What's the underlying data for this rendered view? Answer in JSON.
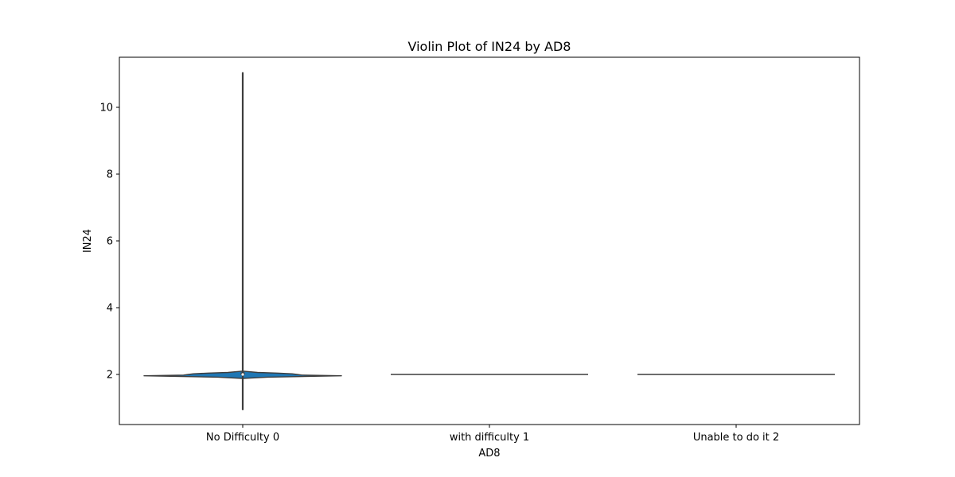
{
  "chart_data": {
    "type": "violin",
    "title": "Violin Plot of IN24 by AD8",
    "xlabel": "AD8",
    "ylabel": "IN24",
    "categories": [
      "No Difficulty 0",
      "with difficulty 1",
      "Unable to do it 2"
    ],
    "ylim": [
      0.5,
      11.5
    ],
    "yticks": [
      2,
      4,
      6,
      8,
      10
    ],
    "grid": false,
    "violin_color": "#1f77b4",
    "edge_color": "#3d3d3d",
    "violins": [
      {
        "category": "No Difficulty 0",
        "min": 0.94,
        "max": 11.04,
        "median": 2.0,
        "q1": 1.98,
        "q3": 2.06,
        "density": [
          [
            0.94,
            0.0
          ],
          [
            1.5,
            0.0
          ],
          [
            1.88,
            0.0
          ],
          [
            1.92,
            0.25
          ],
          [
            1.96,
            1.0
          ],
          [
            1.98,
            0.6
          ],
          [
            2.0,
            0.55
          ],
          [
            2.02,
            0.5
          ],
          [
            2.04,
            0.35
          ],
          [
            2.06,
            0.15
          ],
          [
            2.1,
            0.0
          ],
          [
            11.04,
            0.0
          ]
        ]
      },
      {
        "category": "with difficulty 1",
        "min": 2.0,
        "max": 2.0,
        "median": 2.0,
        "density": [
          [
            2.0,
            1.0
          ]
        ]
      },
      {
        "category": "Unable to do it 2",
        "min": 2.0,
        "max": 2.0,
        "median": 2.0,
        "density": [
          [
            2.0,
            1.0
          ]
        ]
      }
    ]
  }
}
